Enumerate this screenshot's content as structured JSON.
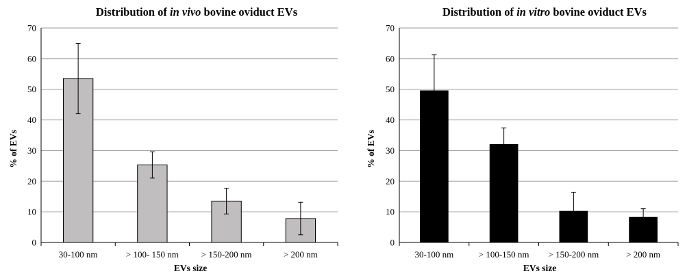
{
  "chart_data": [
    {
      "type": "bar",
      "title_prefix": "Distribution of ",
      "title_italic": "in vivo",
      "title_suffix": " bovine oviduct EVs",
      "xlabel": "EVs size",
      "ylabel": "% of EVs",
      "ylim": [
        0,
        70
      ],
      "yticks": [
        0,
        10,
        20,
        30,
        40,
        50,
        60,
        70
      ],
      "grid": true,
      "bar_color": "#c0bebe",
      "categories": [
        "30-100 nm",
        "> 100- 150 nm",
        "> 150-200 nm",
        "> 200 nm"
      ],
      "values": [
        53.5,
        25.3,
        13.5,
        7.8
      ],
      "errors": [
        11.5,
        4.3,
        4.2,
        5.3
      ]
    },
    {
      "type": "bar",
      "title_prefix": "Distribution of ",
      "title_italic": "in vitro",
      "title_suffix": " bovine oviduct EVs",
      "xlabel": "EVs size",
      "ylabel": "% of EVs",
      "ylim": [
        0,
        70
      ],
      "yticks": [
        0,
        10,
        20,
        30,
        40,
        50,
        60,
        70
      ],
      "grid": true,
      "bar_color": "#000000",
      "categories": [
        "30-100 nm",
        "> 100-150 nm",
        "> 150-200 nm",
        "> 200 nm"
      ],
      "values": [
        49.5,
        32.0,
        10.2,
        8.2
      ],
      "errors": [
        11.8,
        5.4,
        6.2,
        2.8
      ]
    }
  ]
}
